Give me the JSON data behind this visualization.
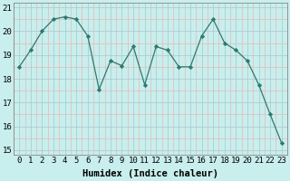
{
  "x": [
    0,
    1,
    2,
    3,
    4,
    5,
    6,
    7,
    8,
    9,
    10,
    11,
    12,
    13,
    14,
    15,
    16,
    17,
    18,
    19,
    20,
    21,
    22,
    23
  ],
  "y": [
    18.5,
    19.2,
    20.0,
    20.5,
    20.6,
    20.5,
    19.8,
    17.55,
    18.75,
    18.55,
    19.35,
    17.75,
    19.35,
    19.2,
    18.5,
    18.5,
    19.8,
    20.5,
    19.5,
    19.2,
    18.75,
    17.75,
    16.5,
    15.3
  ],
  "line_color": "#2d7a6e",
  "marker": "D",
  "marker_size": 2.2,
  "bg_color": "#c8eeed",
  "grid_color_major": "#b0c8c8",
  "grid_color_minor": "#f0b8b8",
  "xlabel": "Humidex (Indice chaleur)",
  "ylim": [
    14.8,
    21.2
  ],
  "xlim": [
    -0.5,
    23.5
  ],
  "yticks": [
    15,
    16,
    17,
    18,
    19,
    20,
    21
  ],
  "xticks": [
    0,
    1,
    2,
    3,
    4,
    5,
    6,
    7,
    8,
    9,
    10,
    11,
    12,
    13,
    14,
    15,
    16,
    17,
    18,
    19,
    20,
    21,
    22,
    23
  ],
  "font_size": 6.5,
  "xlabel_fontsize": 7.5
}
